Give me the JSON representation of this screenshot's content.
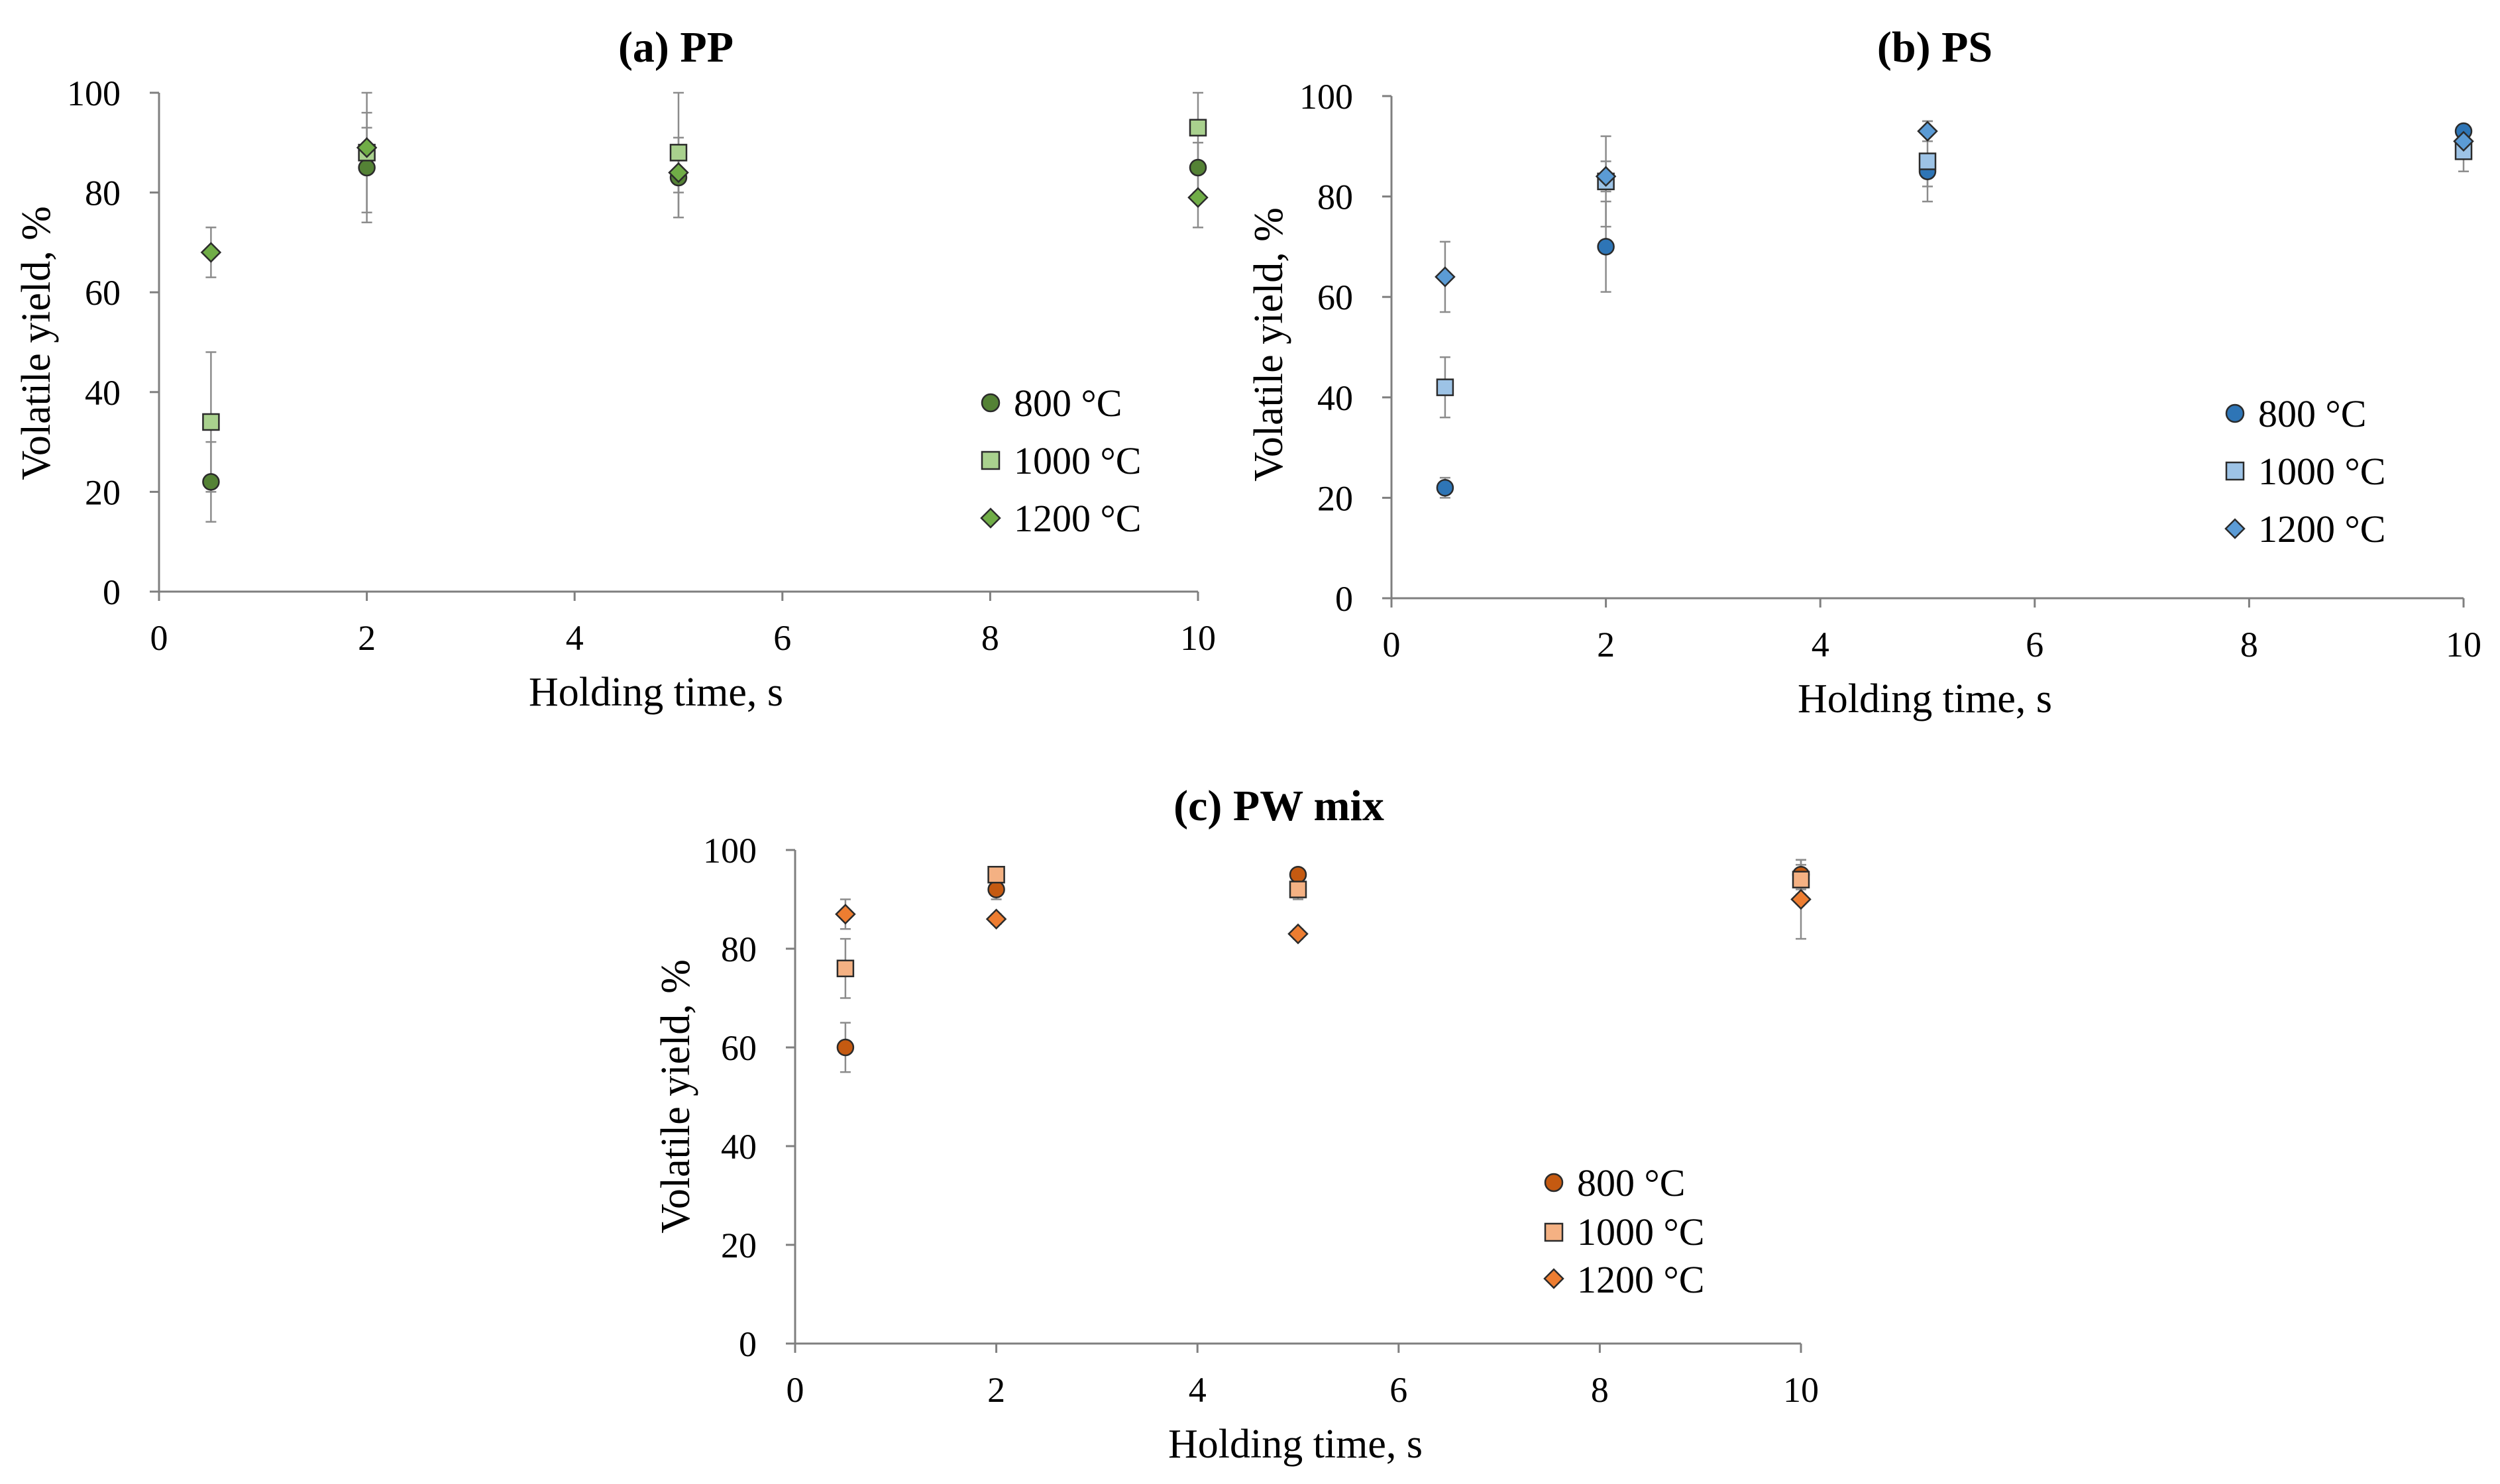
{
  "chart_data": [
    {
      "id": "pp",
      "type": "scatter",
      "title": "(a) PP",
      "xlabel": "Holding time, s",
      "ylabel": "Volatile yield, %",
      "xlim": [
        0,
        10
      ],
      "ylim": [
        0,
        100
      ],
      "xticks": [
        0,
        2,
        4,
        6,
        8,
        10
      ],
      "yticks": [
        0,
        20,
        40,
        60,
        80,
        100
      ],
      "grid": false,
      "legend_position": "right",
      "series": [
        {
          "name": "800 °C",
          "marker": "circle",
          "color": "#548235",
          "points": [
            {
              "x": 0.5,
              "y": 22,
              "err": 8
            },
            {
              "x": 2,
              "y": 85,
              "err": 11
            },
            {
              "x": 5,
              "y": 83,
              "err": 8
            },
            {
              "x": 10,
              "y": 85,
              "err": 5
            }
          ]
        },
        {
          "name": "1000 °C",
          "marker": "square",
          "color": "#a9d18e",
          "points": [
            {
              "x": 0.5,
              "y": 34,
              "err": 14
            },
            {
              "x": 2,
              "y": 88,
              "err": 12
            },
            {
              "x": 5,
              "y": 88,
              "err": 13
            },
            {
              "x": 10,
              "y": 93,
              "err": 7
            }
          ]
        },
        {
          "name": "1200 °C",
          "marker": "diamond",
          "color": "#70ad47",
          "points": [
            {
              "x": 0.5,
              "y": 68,
              "err": 5
            },
            {
              "x": 2,
              "y": 89,
              "err": 4
            },
            {
              "x": 5,
              "y": 84,
              "err": 4
            },
            {
              "x": 10,
              "y": 79,
              "err": 6
            }
          ]
        }
      ]
    },
    {
      "id": "ps",
      "type": "scatter",
      "title": "(b) PS",
      "xlabel": "Holding time, s",
      "ylabel": "Volatile yield, %",
      "xlim": [
        0,
        10
      ],
      "ylim": [
        0,
        100
      ],
      "xticks": [
        0,
        2,
        4,
        6,
        8,
        10
      ],
      "yticks": [
        0,
        20,
        40,
        60,
        80,
        100
      ],
      "grid": false,
      "legend_position": "right",
      "series": [
        {
          "name": "800 °C",
          "marker": "circle",
          "color": "#2e75b6",
          "points": [
            {
              "x": 0.5,
              "y": 22,
              "err": 2
            },
            {
              "x": 2,
              "y": 70,
              "err": 9
            },
            {
              "x": 5,
              "y": 85,
              "err": 3
            },
            {
              "x": 10,
              "y": 93,
              "err": 1
            }
          ]
        },
        {
          "name": "1000 °C",
          "marker": "square",
          "color": "#9dc3e6",
          "points": [
            {
              "x": 0.5,
              "y": 42,
              "err": 6
            },
            {
              "x": 2,
              "y": 83,
              "err": 9
            },
            {
              "x": 5,
              "y": 87,
              "err": 8
            },
            {
              "x": 10,
              "y": 89,
              "err": 4
            }
          ]
        },
        {
          "name": "1200 °C",
          "marker": "diamond",
          "color": "#5b9bd5",
          "points": [
            {
              "x": 0.5,
              "y": 64,
              "err": 7
            },
            {
              "x": 2,
              "y": 84,
              "err": 3
            },
            {
              "x": 5,
              "y": 93,
              "err": 2
            },
            {
              "x": 10,
              "y": 91,
              "err": 2
            }
          ]
        }
      ]
    },
    {
      "id": "pw",
      "type": "scatter",
      "title": "(c) PW mix",
      "xlabel": "Holding time, s",
      "ylabel": "Volatile yield, %",
      "xlim": [
        0,
        10
      ],
      "ylim": [
        0,
        100
      ],
      "xticks": [
        0,
        2,
        4,
        6,
        8,
        10
      ],
      "yticks": [
        0,
        20,
        40,
        60,
        80,
        100
      ],
      "grid": false,
      "legend_position": "right",
      "series": [
        {
          "name": "800 °C",
          "marker": "circle",
          "color": "#c55a11",
          "points": [
            {
              "x": 0.5,
              "y": 60,
              "err": 5
            },
            {
              "x": 2,
              "y": 92,
              "err": 2
            },
            {
              "x": 5,
              "y": 95,
              "err": 1
            },
            {
              "x": 10,
              "y": 95,
              "err": 3
            }
          ]
        },
        {
          "name": "1000 °C",
          "marker": "square",
          "color": "#f4b183",
          "points": [
            {
              "x": 0.5,
              "y": 76,
              "err": 6
            },
            {
              "x": 2,
              "y": 95,
              "err": 1
            },
            {
              "x": 5,
              "y": 92,
              "err": 2
            },
            {
              "x": 10,
              "y": 94,
              "err": 3
            }
          ]
        },
        {
          "name": "1200 °C",
          "marker": "diamond",
          "color": "#ed7d31",
          "points": [
            {
              "x": 0.5,
              "y": 87,
              "err": 3
            },
            {
              "x": 2,
              "y": 86,
              "err": 1
            },
            {
              "x": 5,
              "y": 83,
              "err": 1
            },
            {
              "x": 10,
              "y": 90,
              "err": 8
            }
          ]
        }
      ]
    }
  ]
}
